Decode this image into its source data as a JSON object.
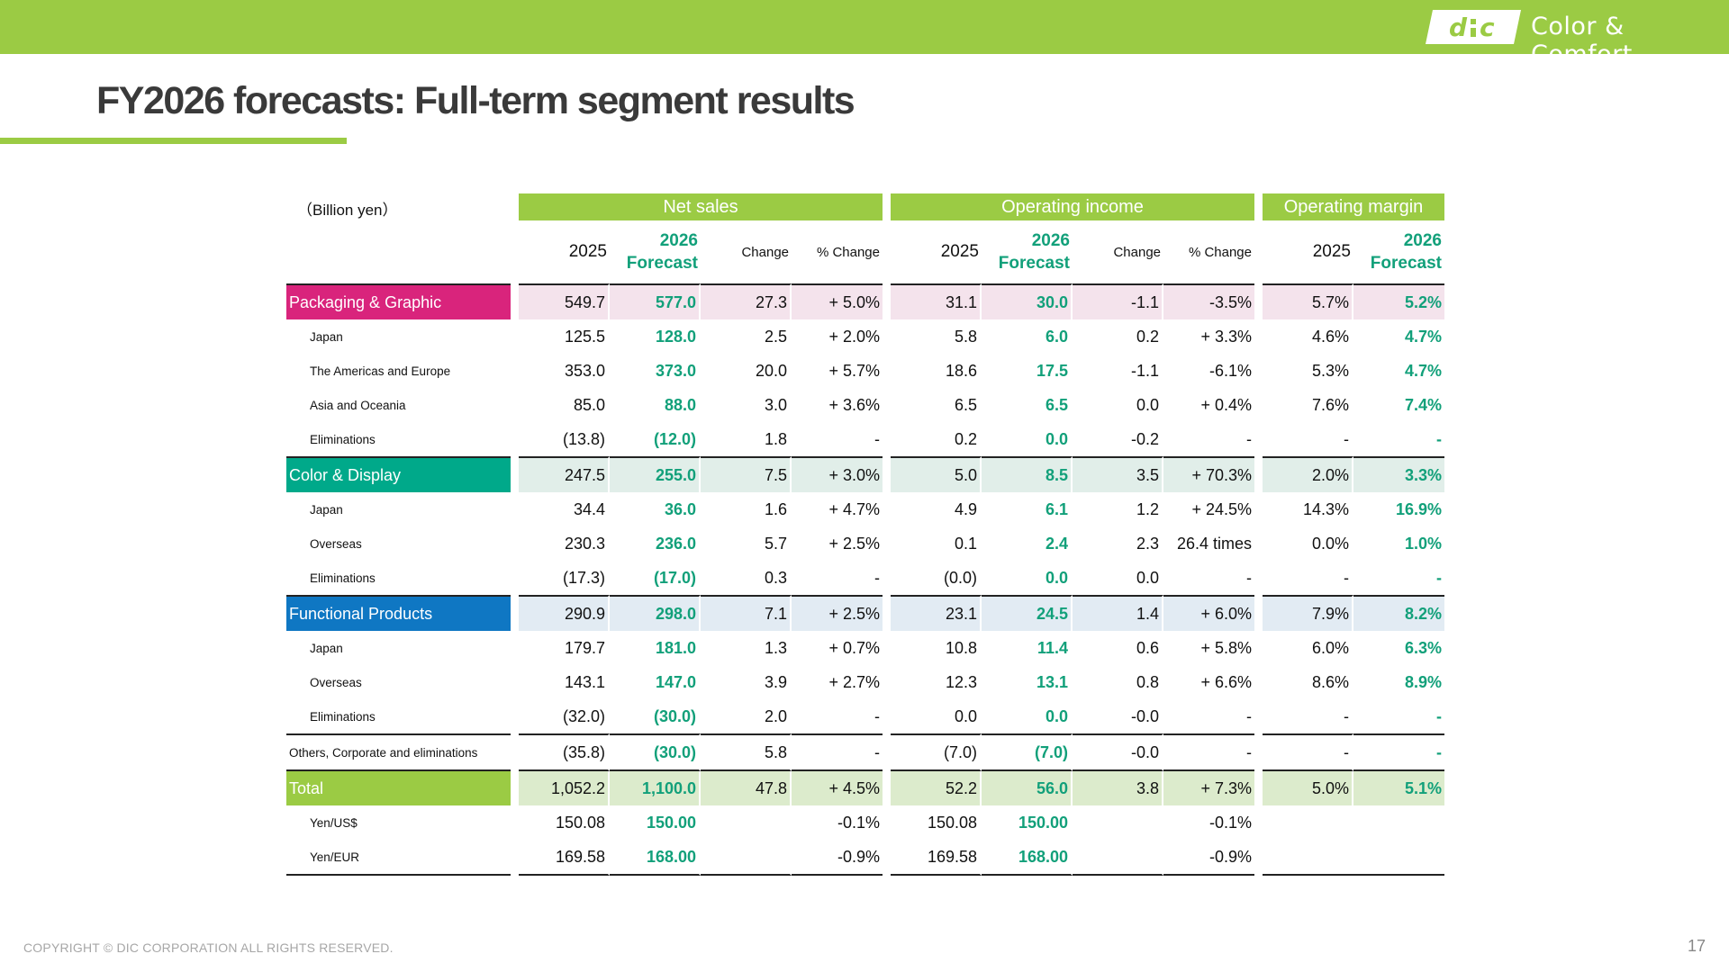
{
  "header": {
    "tagline": "Color & Comfort",
    "logo_text": "dic"
  },
  "title": "FY2026 forecasts: Full-term segment results",
  "unit": "（Billion yen）",
  "groups": {
    "net_sales": "Net sales",
    "operating_income": "Operating income",
    "operating_margin": "Operating margin"
  },
  "columns": {
    "y2025": "2025",
    "y2026_line1": "2026",
    "y2026_line2": "Forecast",
    "change": "Change",
    "pct_change": "% Change"
  },
  "rows": [
    {
      "label": "Packaging & Graphic",
      "cells": [
        "549.7",
        "577.0",
        "27.3",
        "+ 5.0%",
        "31.1",
        "30.0",
        "-1.1",
        "-3.5%",
        "5.7%",
        "5.2%"
      ]
    },
    {
      "label": "Japan",
      "cells": [
        "125.5",
        "128.0",
        "2.5",
        "+ 2.0%",
        "5.8",
        "6.0",
        "0.2",
        "+ 3.3%",
        "4.6%",
        "4.7%"
      ]
    },
    {
      "label": "The Americas and Europe",
      "cells": [
        "353.0",
        "373.0",
        "20.0",
        "+ 5.7%",
        "18.6",
        "17.5",
        "-1.1",
        "-6.1%",
        "5.3%",
        "4.7%"
      ]
    },
    {
      "label": "Asia and Oceania",
      "cells": [
        "85.0",
        "88.0",
        "3.0",
        "+ 3.6%",
        "6.5",
        "6.5",
        "0.0",
        "+ 0.4%",
        "7.6%",
        "7.4%"
      ]
    },
    {
      "label": "Eliminations",
      "cells": [
        "(13.8)",
        "(12.0)",
        "1.8",
        "-",
        "0.2",
        "0.0",
        "-0.2",
        "-",
        "-",
        "-"
      ]
    },
    {
      "label": "Color & Display",
      "cells": [
        "247.5",
        "255.0",
        "7.5",
        "+ 3.0%",
        "5.0",
        "8.5",
        "3.5",
        "+ 70.3%",
        "2.0%",
        "3.3%"
      ]
    },
    {
      "label": "Japan",
      "cells": [
        "34.4",
        "36.0",
        "1.6",
        "+ 4.7%",
        "4.9",
        "6.1",
        "1.2",
        "+ 24.5%",
        "14.3%",
        "16.9%"
      ]
    },
    {
      "label": "Overseas",
      "cells": [
        "230.3",
        "236.0",
        "5.7",
        "+ 2.5%",
        "0.1",
        "2.4",
        "2.3",
        "26.4 times",
        "0.0%",
        "1.0%"
      ]
    },
    {
      "label": "Eliminations",
      "cells": [
        "(17.3)",
        "(17.0)",
        "0.3",
        "-",
        "(0.0)",
        "0.0",
        "0.0",
        "-",
        "-",
        "-"
      ]
    },
    {
      "label": "Functional Products",
      "cells": [
        "290.9",
        "298.0",
        "7.1",
        "+ 2.5%",
        "23.1",
        "24.5",
        "1.4",
        "+ 6.0%",
        "7.9%",
        "8.2%"
      ]
    },
    {
      "label": "Japan",
      "cells": [
        "179.7",
        "181.0",
        "1.3",
        "+ 0.7%",
        "10.8",
        "11.4",
        "0.6",
        "+ 5.8%",
        "6.0%",
        "6.3%"
      ]
    },
    {
      "label": "Overseas",
      "cells": [
        "143.1",
        "147.0",
        "3.9",
        "+ 2.7%",
        "12.3",
        "13.1",
        "0.8",
        "+ 6.6%",
        "8.6%",
        "8.9%"
      ]
    },
    {
      "label": "Eliminations",
      "cells": [
        "(32.0)",
        "(30.0)",
        "2.0",
        "-",
        "0.0",
        "0.0",
        "-0.0",
        "-",
        "-",
        "-"
      ]
    },
    {
      "label": "Others, Corporate and eliminations",
      "cells": [
        "(35.8)",
        "(30.0)",
        "5.8",
        "-",
        "(7.0)",
        "(7.0)",
        "-0.0",
        "-",
        "-",
        "-"
      ]
    },
    {
      "label": "Total",
      "cells": [
        "1,052.2",
        "1,100.0",
        "47.8",
        "+ 4.5%",
        "52.2",
        "56.0",
        "3.8",
        "+ 7.3%",
        "5.0%",
        "5.1%"
      ]
    },
    {
      "label": "Yen/US$",
      "cells": [
        "150.08",
        "150.00",
        "",
        "-0.1%",
        "150.08",
        "150.00",
        "",
        "-0.1%",
        "",
        ""
      ]
    },
    {
      "label": "Yen/EUR",
      "cells": [
        "169.58",
        "168.00",
        "",
        "-0.9%",
        "169.58",
        "168.00",
        "",
        "-0.9%",
        "",
        ""
      ]
    }
  ],
  "colors": {
    "brand_green": "#9bcb44",
    "forecast_green": "#12a07a",
    "packaging": "#d9247c",
    "color_display": "#00a98a",
    "functional": "#0f77c3"
  },
  "footer": {
    "copyright": "COPYRIGHT © DIC CORPORATION ALL RIGHTS RESERVED.",
    "page": "17"
  }
}
